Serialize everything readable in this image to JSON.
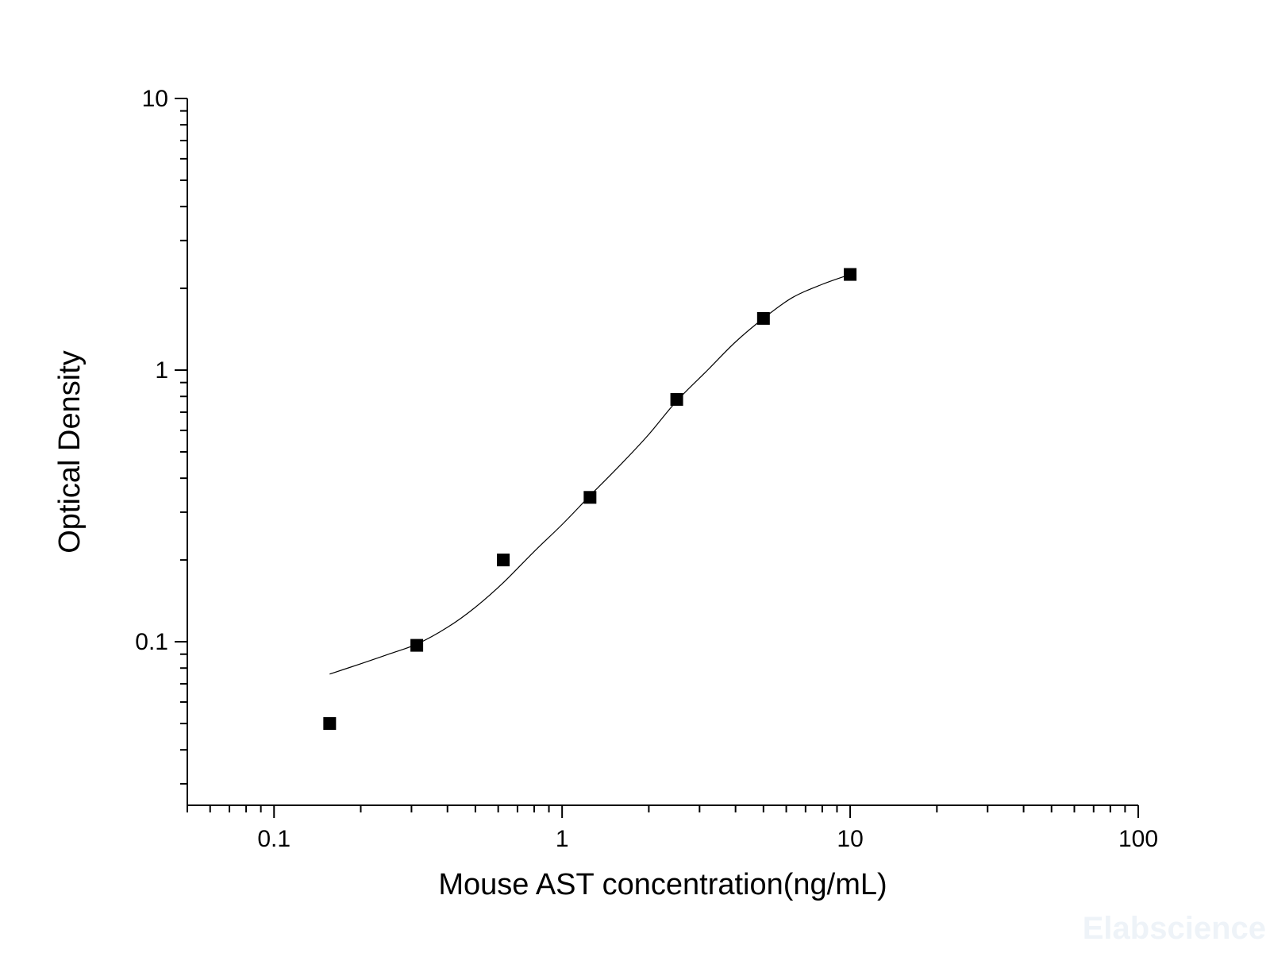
{
  "chart_data": {
    "type": "scatter",
    "title": "",
    "xlabel": "Mouse AST concentration(ng/mL)",
    "ylabel": "Optical Density",
    "xscale": "log",
    "yscale": "log",
    "xlim": [
      0.05,
      100
    ],
    "ylim": [
      0.025,
      10
    ],
    "x_ticks": [
      {
        "value": 0.1,
        "label": "0.1"
      },
      {
        "value": 1,
        "label": "1"
      },
      {
        "value": 10,
        "label": "10"
      },
      {
        "value": 100,
        "label": "100"
      }
    ],
    "y_ticks": [
      {
        "value": 0.1,
        "label": "0.1"
      },
      {
        "value": 1,
        "label": "1"
      },
      {
        "value": 10,
        "label": "10"
      }
    ],
    "grid": false,
    "legend": "none",
    "series": [
      {
        "marker": "square",
        "color": "#000000",
        "x": [
          0.156,
          0.313,
          0.625,
          1.25,
          2.5,
          5,
          10
        ],
        "y": [
          0.05,
          0.097,
          0.2,
          0.34,
          0.78,
          1.55,
          2.25
        ]
      }
    ],
    "fit_curve": {
      "type": "4PL",
      "color": "#000000",
      "x": [
        0.156,
        0.2,
        0.25,
        0.313,
        0.4,
        0.5,
        0.625,
        0.8,
        1.0,
        1.25,
        1.6,
        2.0,
        2.5,
        3.2,
        4.0,
        5.0,
        6.3,
        8.0,
        10
      ],
      "y": [
        0.076,
        0.083,
        0.09,
        0.098,
        0.113,
        0.134,
        0.165,
        0.215,
        0.27,
        0.345,
        0.45,
        0.58,
        0.77,
        1.0,
        1.27,
        1.55,
        1.85,
        2.07,
        2.25
      ]
    }
  },
  "watermark": "Elabscience"
}
